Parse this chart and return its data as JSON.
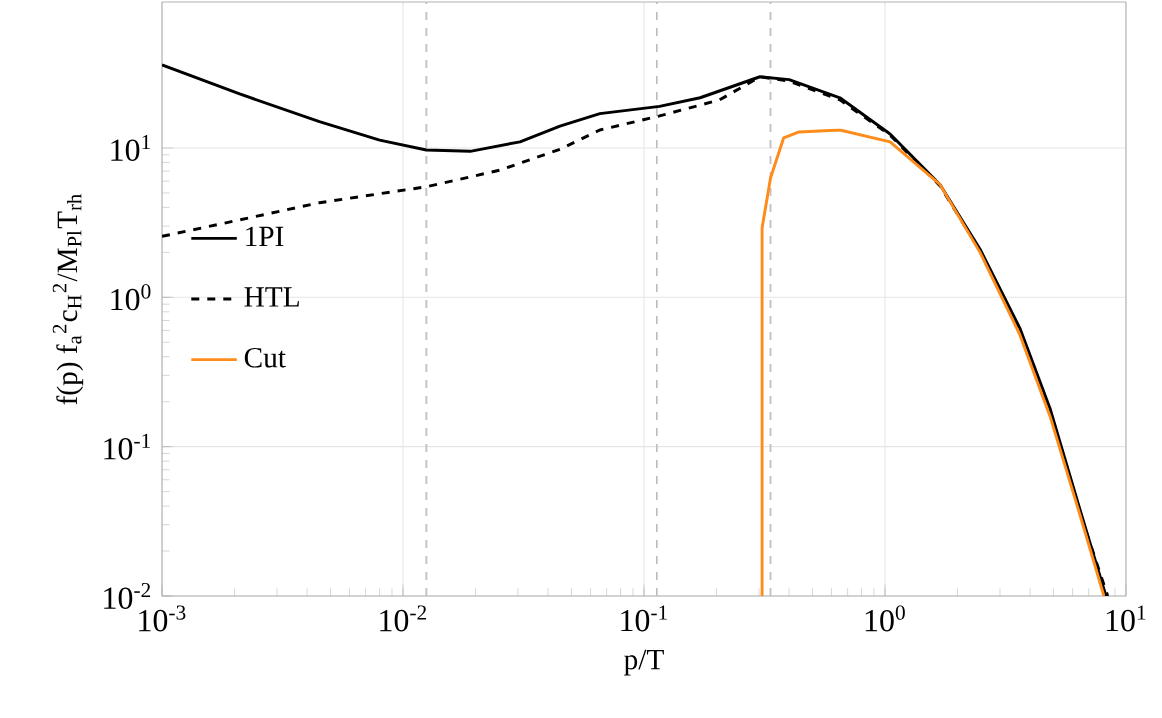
{
  "chart_data": {
    "type": "line",
    "xlabel": "p/T",
    "ylabel": "f(p) f$_{a}$$^{2}$c$_{H}$$^{2}$/M$_{Pl}$T$_{rh}$",
    "log": "xy",
    "grid": true,
    "legend": "left",
    "marker": "none",
    "xlim": [
      0.001,
      10
    ],
    "ylim": [
      0.01,
      95
    ],
    "xticks": [
      {
        "value": 0.001,
        "label": "10$^{-3}$"
      },
      {
        "value": 0.01,
        "label": "10$^{-2}$"
      },
      {
        "value": 0.1,
        "label": "10$^{-1}$"
      },
      {
        "value": 1,
        "label": "10$^{0}$"
      },
      {
        "value": 10,
        "label": "10$^{1}$"
      }
    ],
    "yticks": [
      {
        "value": 0.01,
        "label": "10$^{-2}$"
      },
      {
        "value": 0.1,
        "label": "10$^{-1}$"
      },
      {
        "value": 1,
        "label": "10$^{0}$"
      },
      {
        "value": 10,
        "label": "10$^{1}$"
      }
    ],
    "ref_lines": [
      {
        "axis": "x",
        "value": 0.0125,
        "color": "#c0c0c0",
        "line_style": "dashed"
      },
      {
        "axis": "x",
        "value": 0.113,
        "color": "#c0c0c0",
        "line_style": "dashed"
      },
      {
        "axis": "x",
        "value": 0.335,
        "color": "#c0c0c0",
        "line_style": "dashed"
      }
    ],
    "series": [
      {
        "name": "1PI",
        "color": "#000000",
        "line_style": "solid",
        "x": [
          0.001,
          0.0021,
          0.0045,
          0.008,
          0.0125,
          0.019,
          0.0306,
          0.0448,
          0.0656,
          0.116,
          0.171,
          0.303,
          0.4,
          0.65,
          1.05,
          1.69,
          2.48,
          3.63,
          4.84,
          6.44,
          8.26
        ],
        "values": [
          36,
          23,
          15,
          11.3,
          9.7,
          9.5,
          11,
          14,
          17,
          19,
          21.7,
          30,
          28.7,
          21.7,
          12.4,
          5.7,
          2.1,
          0.62,
          0.18,
          0.038,
          0.01
        ]
      },
      {
        "name": "HTL",
        "color": "#000000",
        "line_style": "dashed",
        "x": [
          0.001,
          0.0021,
          0.0045,
          0.0125,
          0.0252,
          0.0448,
          0.0656,
          0.116,
          0.206,
          0.303,
          0.4,
          0.65,
          1.05,
          1.69,
          2.48,
          3.63,
          4.84,
          6.44,
          8.4
        ],
        "values": [
          2.56,
          3.3,
          4.3,
          5.5,
          7.1,
          9.8,
          13.2,
          16.4,
          21,
          30,
          28,
          21,
          12.2,
          5.6,
          2.05,
          0.6,
          0.17,
          0.036,
          0.01
        ]
      },
      {
        "name": "Cut",
        "color": "#ff8c1a",
        "line_style": "solid",
        "x": [
          0.309,
          0.309,
          0.335,
          0.38,
          0.44,
          0.65,
          1.05,
          1.69,
          2.48,
          3.63,
          4.84,
          6.44,
          8.1
        ],
        "values": [
          0.01,
          2.9,
          6.3,
          11.7,
          12.8,
          13.2,
          11,
          5.7,
          2.0,
          0.56,
          0.16,
          0.035,
          0.01
        ]
      }
    ]
  }
}
